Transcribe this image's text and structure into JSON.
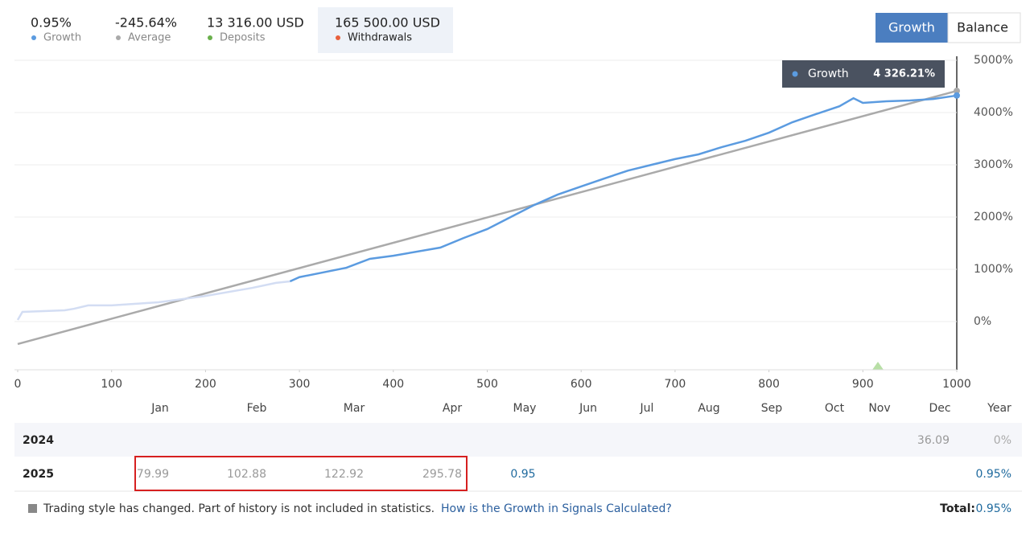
{
  "header": {
    "stats": [
      {
        "value": "0.95%",
        "label": "Growth",
        "color": "#5b9be0"
      },
      {
        "value": "-245.64%",
        "label": "Average",
        "color": "#aaaaaa"
      },
      {
        "value": "13 316.00 USD",
        "label": "Deposits",
        "color": "#6ab04c"
      },
      {
        "value": "165 500.00 USD",
        "label": "Withdrawals",
        "color": "#e8603c"
      }
    ],
    "tabs": [
      "Growth",
      "Balance"
    ]
  },
  "chart_data": {
    "type": "line",
    "x": [
      0,
      5,
      50,
      60,
      75,
      100,
      150,
      200,
      250,
      275,
      290,
      300,
      350,
      375,
      400,
      450,
      475,
      500,
      525,
      550,
      575,
      600,
      625,
      650,
      675,
      700,
      725,
      750,
      775,
      800,
      825,
      850,
      875,
      890,
      900,
      925,
      950,
      975,
      1000
    ],
    "series": [
      {
        "color": "#d3ddf3",
        "values": [
          30,
          185,
          215,
          245,
          310,
          310,
          370,
          490,
          645,
          740,
          770,
          null,
          null,
          null,
          null,
          null,
          null,
          null,
          null,
          null,
          null,
          null,
          null,
          null,
          null,
          null,
          null,
          null,
          null,
          null,
          null,
          null,
          null,
          null,
          null,
          null,
          null,
          null,
          null
        ]
      },
      {
        "color": "#5b9be0",
        "values": [
          null,
          null,
          null,
          null,
          null,
          null,
          null,
          null,
          null,
          null,
          770,
          850,
          1030,
          1200,
          1260,
          1415,
          1600,
          1770,
          2000,
          2230,
          2430,
          2585,
          2740,
          2890,
          3000,
          3110,
          3200,
          3340,
          3460,
          3615,
          3815,
          3970,
          4120,
          4275,
          4185,
          4215,
          4230,
          4260,
          4326.21
        ]
      }
    ],
    "trend": {
      "color": "#aaaaaa",
      "x": [
        0,
        1000
      ],
      "values": [
        -430,
        4415
      ]
    },
    "xlim": [
      0,
      1000
    ],
    "xticks": [
      0,
      100,
      200,
      300,
      400,
      500,
      600,
      700,
      800,
      900,
      1000
    ],
    "ylim": [
      -923,
      5077
    ],
    "yticks": [
      {
        "value": 0,
        "label": "0%"
      },
      {
        "value": 1000,
        "label": "1000%"
      },
      {
        "value": 2000,
        "label": "2000%"
      },
      {
        "value": 3000,
        "label": "3000%"
      },
      {
        "value": 4000,
        "label": "4000%"
      },
      {
        "value": 5000,
        "label": "5000%"
      }
    ],
    "grid": true,
    "tooltip": {
      "name": "Growth",
      "label": "4 326.21%"
    }
  },
  "table": {
    "columns": [
      "Jan",
      "Feb",
      "Mar",
      "Apr",
      "May",
      "Jun",
      "Jul",
      "Aug",
      "Sep",
      "Oct",
      "Nov",
      "Dec",
      "Year"
    ],
    "rows": [
      {
        "year": "2024",
        "cells": [
          null,
          null,
          null,
          null,
          null,
          null,
          null,
          null,
          null,
          null,
          null,
          "36.09",
          "0%"
        ]
      },
      {
        "year": "2025",
        "cells": [
          "79.99",
          "102.88",
          "122.92",
          "295.78",
          "0.95",
          null,
          null,
          null,
          null,
          null,
          null,
          null,
          "0.95%"
        ]
      }
    ]
  },
  "footer": {
    "note": "Trading style has changed. Part of history is not included in statistics.",
    "link": "How is the Growth in Signals Calculated?",
    "total_label": "Total:",
    "total_value": "0.95%"
  }
}
